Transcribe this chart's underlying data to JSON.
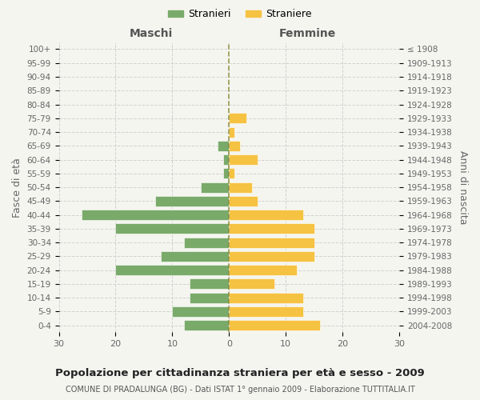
{
  "age_groups": [
    "0-4",
    "5-9",
    "10-14",
    "15-19",
    "20-24",
    "25-29",
    "30-34",
    "35-39",
    "40-44",
    "45-49",
    "50-54",
    "55-59",
    "60-64",
    "65-69",
    "70-74",
    "75-79",
    "80-84",
    "85-89",
    "90-94",
    "95-99",
    "100+"
  ],
  "birth_years": [
    "2004-2008",
    "1999-2003",
    "1994-1998",
    "1989-1993",
    "1984-1988",
    "1979-1983",
    "1974-1978",
    "1969-1973",
    "1964-1968",
    "1959-1963",
    "1954-1958",
    "1949-1953",
    "1944-1948",
    "1939-1943",
    "1934-1938",
    "1929-1933",
    "1924-1928",
    "1919-1923",
    "1914-1918",
    "1909-1913",
    "≤ 1908"
  ],
  "maschi": [
    8,
    10,
    7,
    7,
    20,
    12,
    8,
    20,
    26,
    13,
    5,
    1,
    1,
    2,
    0,
    0,
    0,
    0,
    0,
    0,
    0
  ],
  "femmine": [
    16,
    13,
    13,
    8,
    12,
    15,
    15,
    15,
    13,
    5,
    4,
    1,
    5,
    2,
    1,
    3,
    0,
    0,
    0,
    0,
    0
  ],
  "color_maschi": "#7aaa6a",
  "color_femmine": "#f5c242",
  "background_color": "#f5f5f0",
  "grid_color": "#cccccc",
  "title": "Popolazione per cittadinanza straniera per età e sesso - 2009",
  "subtitle": "COMUNE DI PRADALUNGA (BG) - Dati ISTAT 1° gennaio 2009 - Elaborazione TUTTITALIA.IT",
  "ylabel_left": "Fasce di età",
  "ylabel_right": "Anni di nascita",
  "legend_maschi": "Stranieri",
  "legend_femmine": "Straniere",
  "header_left": "Maschi",
  "header_right": "Femmine",
  "xlim": 30
}
